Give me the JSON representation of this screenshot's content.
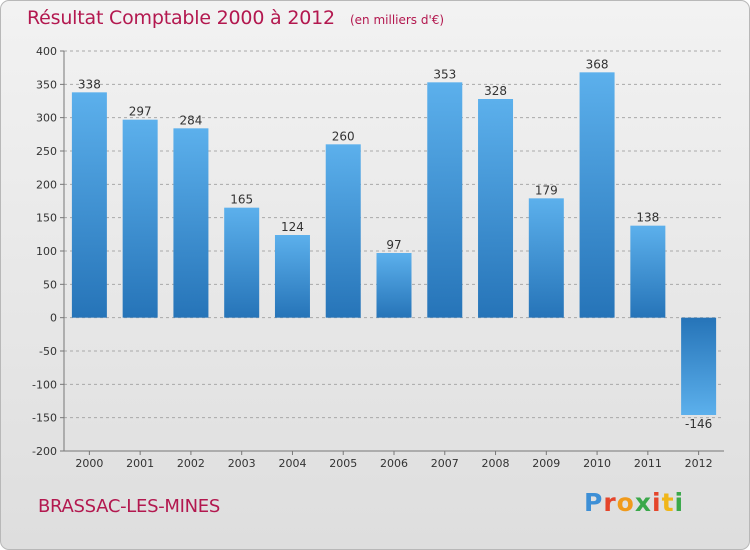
{
  "chart_data": {
    "type": "bar",
    "title": "Résultat Comptable 2000 à 2012",
    "unit_note": "(en milliers d'€)",
    "categories": [
      "2000",
      "2001",
      "2002",
      "2003",
      "2004",
      "2005",
      "2006",
      "2007",
      "2008",
      "2009",
      "2010",
      "2011",
      "2012"
    ],
    "values": [
      338,
      297,
      284,
      165,
      124,
      260,
      97,
      353,
      328,
      179,
      368,
      138,
      -146
    ],
    "value_labels": [
      "338",
      "297",
      "284",
      "165",
      "124",
      "260",
      "97",
      "353",
      "328",
      "179",
      "368",
      "138",
      "-146"
    ],
    "yticks": [
      400,
      350,
      300,
      250,
      200,
      150,
      100,
      50,
      0,
      -50,
      -100,
      -150,
      -200
    ],
    "ylim": [
      -200,
      400
    ],
    "xlabel": "",
    "ylabel": "",
    "grid": "horizontal dashed",
    "bar_color": "#3a8ed3"
  },
  "location": "BRASSAC-LES-MINES",
  "brand": {
    "letters": [
      "P",
      "r",
      "o",
      "x",
      "i",
      "t",
      "i"
    ],
    "colors": [
      "#3d8fd6",
      "#e5452b",
      "#f09a1b",
      "#3aa84a",
      "#e5452b",
      "#f0b619",
      "#3aa84a"
    ]
  }
}
